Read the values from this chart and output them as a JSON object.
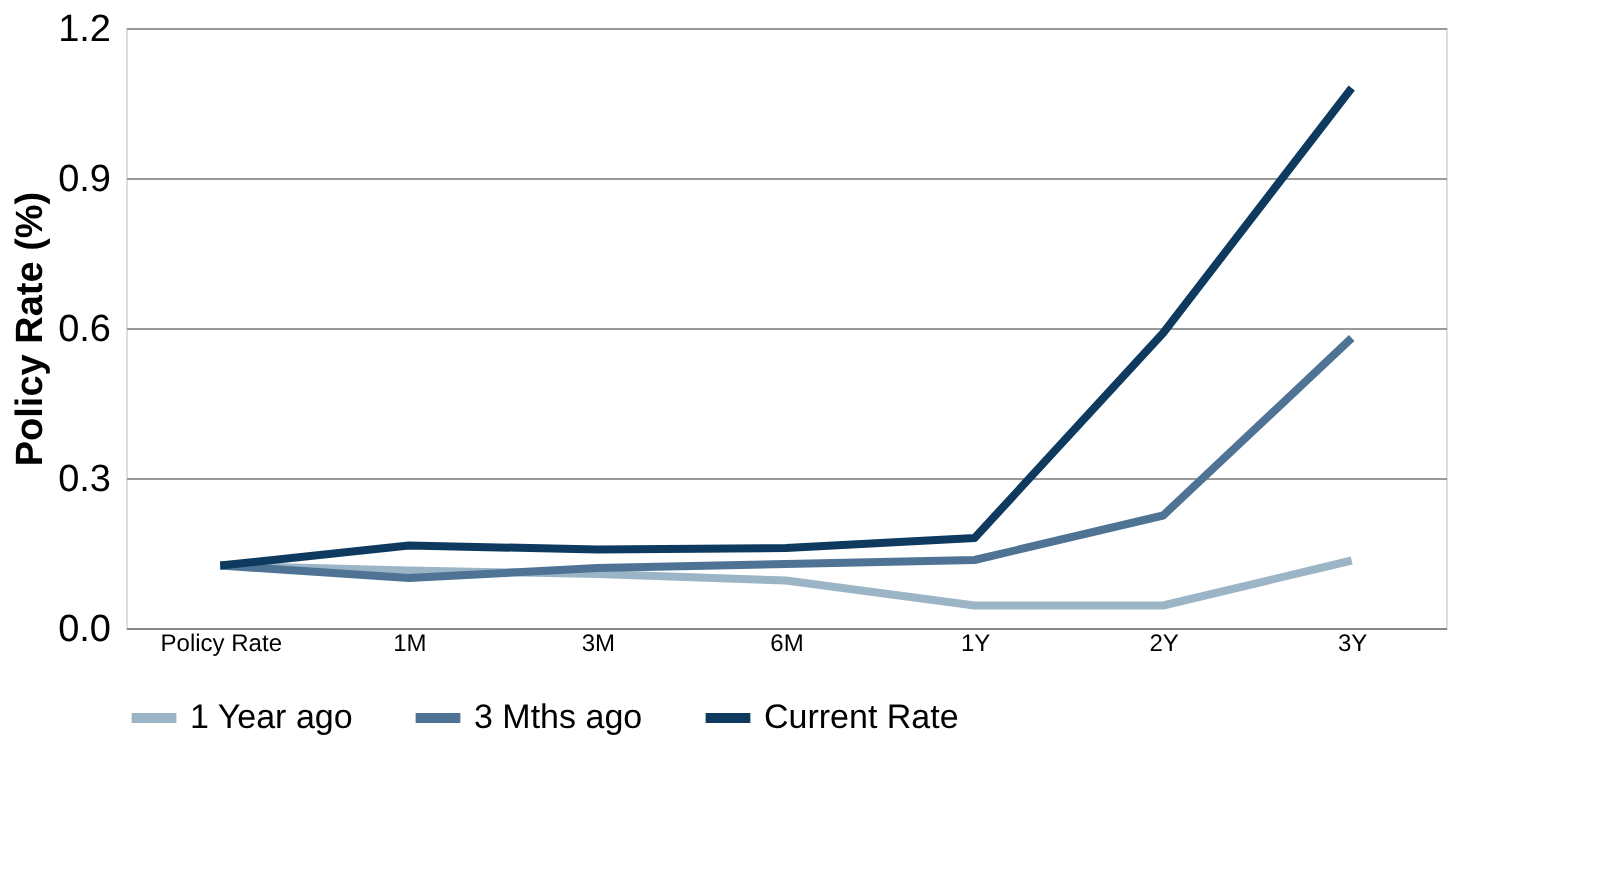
{
  "chart_data": {
    "type": "line",
    "ylabel": "Policy Rate (%)",
    "categories": [
      "Policy Rate",
      "1M",
      "3M",
      "6M",
      "1Y",
      "2Y",
      "3Y"
    ],
    "series": [
      {
        "name": "1 Year ago",
        "color": "#9bb5c6",
        "values": [
          0.125,
          0.115,
          0.108,
          0.095,
          0.045,
          0.045,
          0.135
        ]
      },
      {
        "name": "3 Mths ago",
        "color": "#4e7394",
        "values": [
          0.125,
          0.1,
          0.12,
          0.128,
          0.136,
          0.225,
          0.58
        ]
      },
      {
        "name": "Current Rate",
        "color": "#0d3a5e",
        "values": [
          0.125,
          0.165,
          0.157,
          0.16,
          0.18,
          0.59,
          1.08
        ]
      }
    ],
    "ylim": [
      0,
      1.2
    ],
    "yticks": [
      {
        "value": 0,
        "label": "0.0"
      },
      0.3,
      0.6,
      0.9,
      1.2
    ],
    "grid": "y",
    "legend": "bottom",
    "marker": "none",
    "line_style": "solid"
  }
}
